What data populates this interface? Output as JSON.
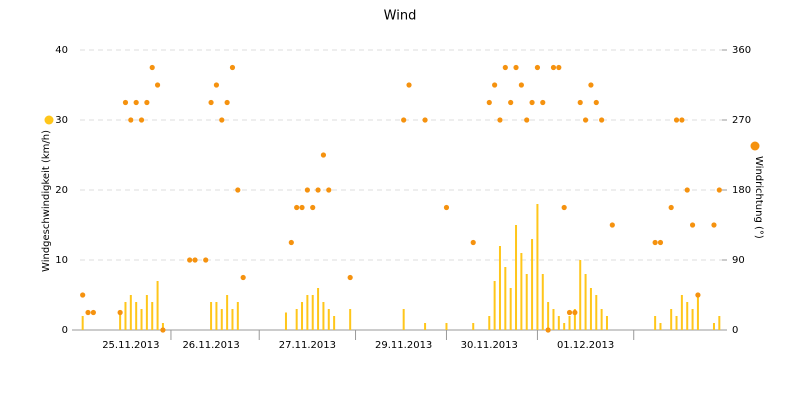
{
  "chart_data": {
    "type": "bar_scatter",
    "title": "Wind",
    "categories": [
      null,
      null,
      null,
      null,
      null,
      null,
      null,
      null,
      null,
      "25.11.2013",
      null,
      null,
      null,
      null,
      null,
      null,
      null,
      null,
      null,
      null,
      null,
      null,
      null,
      null,
      "26.11.2013",
      null,
      null,
      null,
      null,
      null,
      null,
      null,
      null,
      null,
      null,
      null,
      null,
      null,
      null,
      null,
      null,
      null,
      "27.11.2013",
      null,
      null,
      null,
      null,
      null,
      null,
      null,
      null,
      null,
      null,
      null,
      null,
      null,
      null,
      null,
      null,
      null,
      "29.11.2013",
      null,
      null,
      null,
      null,
      null,
      null,
      null,
      null,
      null,
      null,
      null,
      null,
      null,
      null,
      null,
      "30.11.2013",
      null,
      null,
      null,
      null,
      null,
      null,
      null,
      null,
      null,
      null,
      null,
      null,
      null,
      null,
      null,
      null,
      null,
      "01.12.2013",
      null,
      null,
      null,
      null,
      null,
      null,
      null,
      null,
      null,
      null,
      null,
      null,
      null,
      null,
      null,
      null,
      null,
      null,
      null,
      null,
      null,
      null,
      null,
      null,
      null
    ],
    "series": [
      {
        "name": "Windgeschwindigkeit (km/h)",
        "color": "#ffc61a",
        "kind": "bar",
        "values": [
          2,
          0,
          0,
          0,
          0,
          0,
          0,
          2.5,
          4,
          5,
          4,
          3,
          5,
          4,
          7,
          1,
          0,
          0,
          0,
          0,
          0,
          0,
          0,
          0,
          4,
          4,
          3,
          5,
          3,
          4,
          0,
          0,
          0,
          0,
          0,
          0,
          0,
          0,
          2.5,
          0,
          3,
          4,
          5,
          5,
          6,
          4,
          3,
          2,
          0,
          0,
          3,
          0,
          0,
          0,
          0,
          0,
          0,
          0,
          0,
          0,
          3,
          0,
          0,
          0,
          1,
          0,
          0,
          0,
          1,
          0,
          0,
          0,
          0,
          1,
          0,
          0,
          2,
          7,
          12,
          9,
          6,
          15,
          11,
          8,
          13,
          18,
          8,
          4,
          3,
          2,
          1,
          2,
          3,
          10,
          8,
          6,
          5,
          3,
          2,
          0,
          0,
          0,
          0,
          0,
          0,
          0,
          0,
          2,
          1,
          0,
          3,
          2,
          5,
          4,
          3,
          5,
          0,
          0,
          1,
          2
        ]
      },
      {
        "name": "Windrichtung (°)",
        "color": "#f5920f",
        "kind": "scatter",
        "axis": "y2",
        "values": [
          45,
          22.5,
          22.5,
          null,
          null,
          null,
          null,
          22.5,
          292.5,
          270,
          292.5,
          270,
          292.5,
          337.5,
          315,
          0,
          null,
          null,
          null,
          null,
          90,
          90,
          null,
          90,
          292.5,
          315,
          270,
          292.5,
          337.5,
          180,
          67.5,
          null,
          null,
          null,
          null,
          null,
          null,
          null,
          null,
          112.5,
          157.5,
          157.5,
          180,
          157.5,
          180,
          225,
          180,
          null,
          null,
          null,
          67.5,
          null,
          null,
          null,
          null,
          null,
          null,
          null,
          null,
          null,
          270,
          315,
          null,
          null,
          270,
          null,
          null,
          null,
          157.5,
          null,
          null,
          null,
          null,
          112.5,
          null,
          null,
          292.5,
          315,
          270,
          337.5,
          292.5,
          337.5,
          315,
          270,
          292.5,
          337.5,
          292.5,
          0,
          337.5,
          337.5,
          157.5,
          22.5,
          22.5,
          292.5,
          270,
          315,
          292.5,
          270,
          null,
          135,
          null,
          null,
          null,
          null,
          null,
          null,
          null,
          112.5,
          112.5,
          null,
          157.5,
          270,
          270,
          180,
          135,
          45,
          null,
          null,
          135,
          180
        ]
      }
    ],
    "ylim": [
      0,
      40
    ],
    "yticks": [
      0,
      10,
      20,
      30,
      40
    ],
    "y2lim": [
      0,
      360
    ],
    "y2ticks": [
      0,
      90,
      180,
      270,
      360
    ],
    "grid": true
  }
}
